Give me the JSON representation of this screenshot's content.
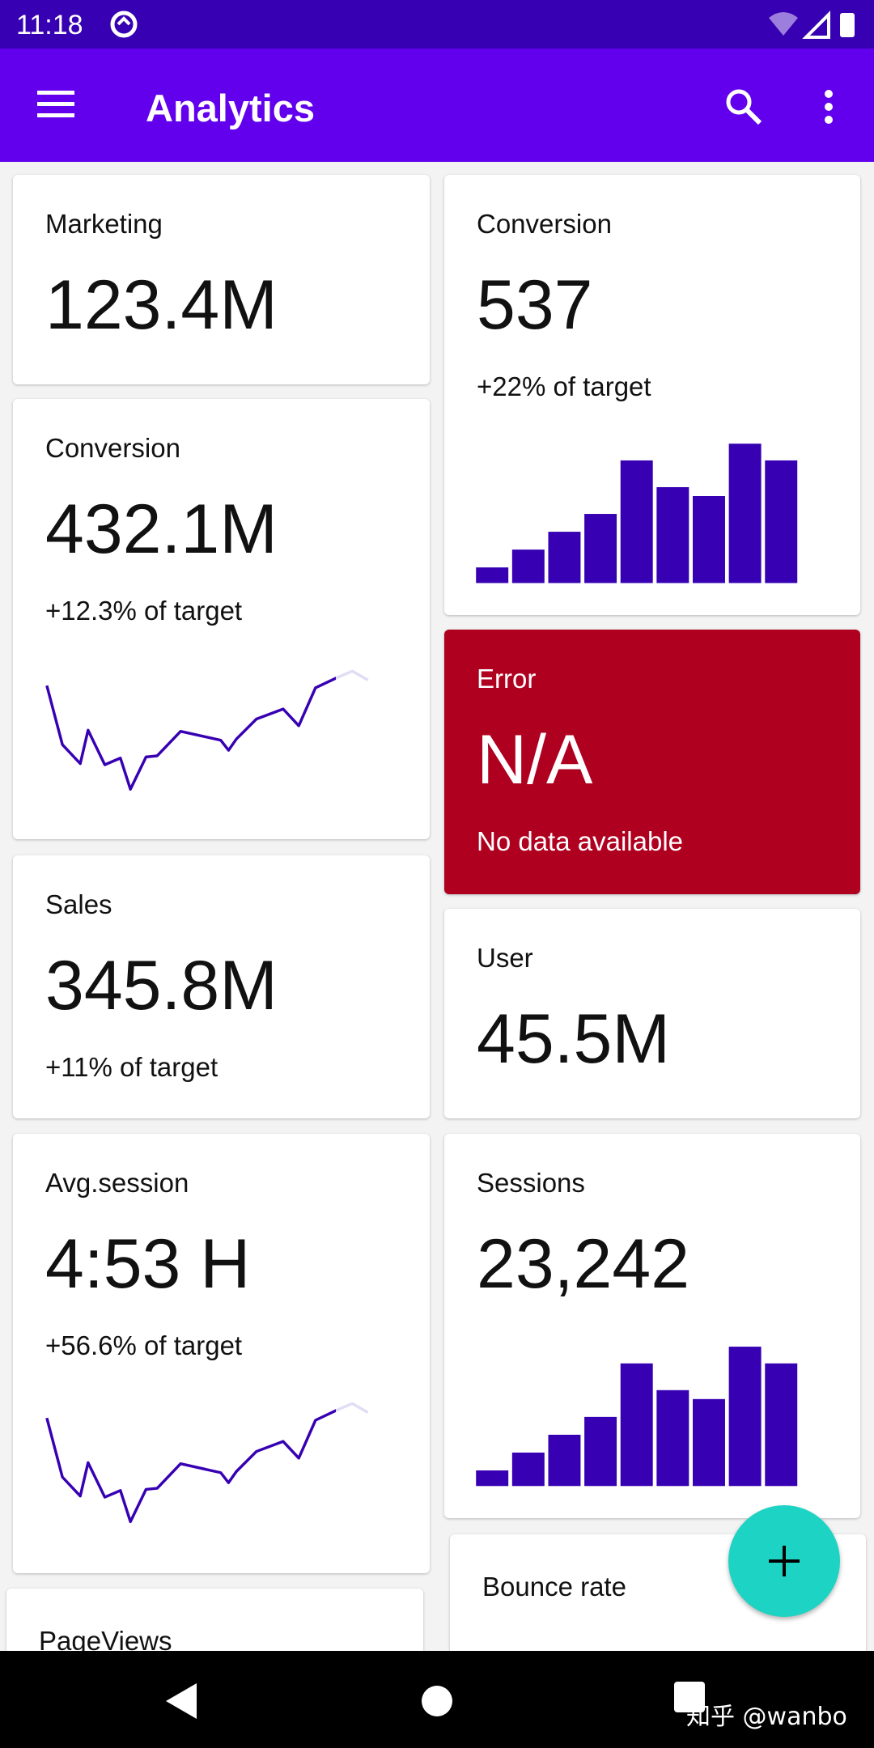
{
  "status_bar": {
    "time": "11:18"
  },
  "app_bar": {
    "title": "Analytics"
  },
  "cards": [
    {
      "label": "Marketing",
      "value": "123.4M"
    },
    {
      "label": "Conversion",
      "value": "432.1M",
      "subtitle": "+12.3% of target",
      "chart": {
        "type": "line",
        "x": [
          0,
          14,
          30,
          37,
          52,
          66,
          75,
          89,
          99,
          120,
          156,
          163,
          170,
          188,
          212,
          226,
          241,
          260,
          274,
          288
        ],
        "values": [
          105,
          52,
          35,
          65,
          34,
          40,
          12,
          41,
          42,
          64,
          56,
          47,
          57,
          75,
          84,
          69,
          103,
          112,
          118,
          110
        ]
      }
    },
    {
      "label": "Sales",
      "value": "345.8M",
      "subtitle": "+11% of target"
    },
    {
      "label": "Avg.session",
      "value": "4:53 H",
      "subtitle": "+56.6% of target",
      "chart": {
        "type": "line",
        "x": [
          0,
          14,
          30,
          37,
          52,
          66,
          75,
          89,
          99,
          120,
          156,
          163,
          170,
          188,
          212,
          226,
          241,
          260,
          274,
          288
        ],
        "values": [
          105,
          52,
          35,
          65,
          34,
          40,
          12,
          41,
          42,
          64,
          56,
          47,
          57,
          75,
          84,
          69,
          103,
          112,
          118,
          110
        ]
      }
    },
    {
      "label": "PageViews"
    },
    {
      "label": "Conversion",
      "value": "537",
      "subtitle": "+22% of target",
      "chart": {
        "type": "bar",
        "values": [
          14,
          30,
          46,
          62,
          110,
          86,
          78,
          125,
          110
        ]
      }
    },
    {
      "label": "Error",
      "value": "N/A",
      "subtitle": "No data available"
    },
    {
      "label": "User",
      "value": "45.5M"
    },
    {
      "label": "Sessions",
      "value": "23,242",
      "chart": {
        "type": "bar",
        "values": [
          14,
          30,
          46,
          62,
          110,
          86,
          78,
          125,
          110
        ]
      }
    },
    {
      "label": "Bounce rate"
    }
  ],
  "watermark": "知乎 @wanbo"
}
